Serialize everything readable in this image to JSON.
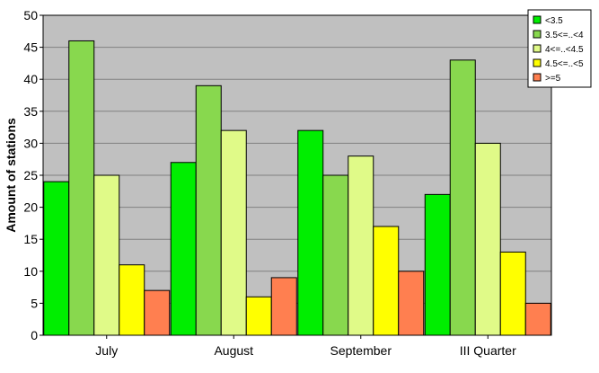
{
  "chart_data": {
    "type": "bar",
    "title": "",
    "xlabel": "",
    "ylabel": "Amount of stations",
    "ylim": [
      0,
      50
    ],
    "yticks": [
      0,
      5,
      10,
      15,
      20,
      25,
      30,
      35,
      40,
      45,
      50
    ],
    "grid": true,
    "legend_position": "top-right",
    "categories": [
      "July",
      "August",
      "September",
      "III Quarter"
    ],
    "series": [
      {
        "name": "<3.5",
        "color": "#00ee00",
        "values": [
          24,
          27,
          32,
          22
        ]
      },
      {
        "name": "3.5<=..<4",
        "color": "#88d84e",
        "values": [
          46,
          39,
          25,
          43
        ]
      },
      {
        "name": "4<=..<4.5",
        "color": "#e0fa88",
        "values": [
          25,
          32,
          28,
          30
        ]
      },
      {
        "name": "4.5<=..<5",
        "color": "#ffff00",
        "values": [
          11,
          6,
          17,
          13
        ]
      },
      {
        "name": ">=5",
        "color": "#ff7f50",
        "values": [
          7,
          9,
          10,
          5
        ]
      }
    ],
    "plot_background": "#c0c0c0"
  }
}
